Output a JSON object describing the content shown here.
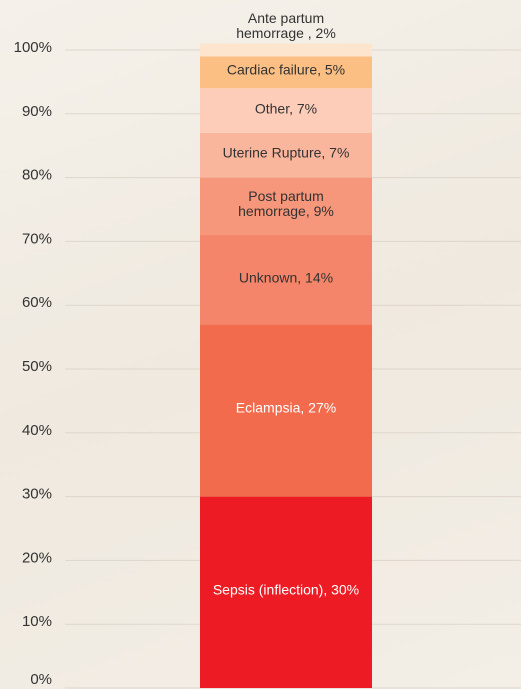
{
  "chart_data": {
    "type": "stacked-bar",
    "series": [
      {
        "name": "Sepsis (inflection), 30%",
        "color": "#ed1c24",
        "values": [
          30
        ]
      },
      {
        "name": "Eclampsia, 27%",
        "color": "#f26b4c",
        "values": [
          27
        ]
      },
      {
        "name": "Unknown, 14%",
        "color": "#f4856a",
        "values": [
          14
        ]
      },
      {
        "name": "Post partum hemorrage, 9%",
        "color": "#f6967b",
        "values": [
          9
        ]
      },
      {
        "name": "Uterine Rupture, 7%",
        "color": "#fab59d",
        "values": [
          7
        ]
      },
      {
        "name": "Other, 7%",
        "color": "#fdcdb9",
        "values": [
          7
        ]
      },
      {
        "name": "Cardiac failure, 5%",
        "color": "#fbbf84",
        "values": [
          5
        ]
      },
      {
        "name": "Ante partum hemorrage , 2%",
        "color": "#fde4cd",
        "values": [
          2
        ]
      }
    ],
    "ylim": [
      0,
      100
    ],
    "yticks": [
      {
        "value": 0,
        "label": "0%"
      },
      {
        "value": 10,
        "label": "10%"
      },
      {
        "value": 20,
        "label": "20%"
      },
      {
        "value": 30,
        "label": "30%"
      },
      {
        "value": 40,
        "label": "40%"
      },
      {
        "value": 50,
        "label": "50%"
      },
      {
        "value": 60,
        "label": "60%"
      },
      {
        "value": 70,
        "label": "70%"
      },
      {
        "value": 80,
        "label": "80%"
      },
      {
        "value": 90,
        "label": "90%"
      },
      {
        "value": 100,
        "label": "100%"
      }
    ],
    "grid": true
  }
}
